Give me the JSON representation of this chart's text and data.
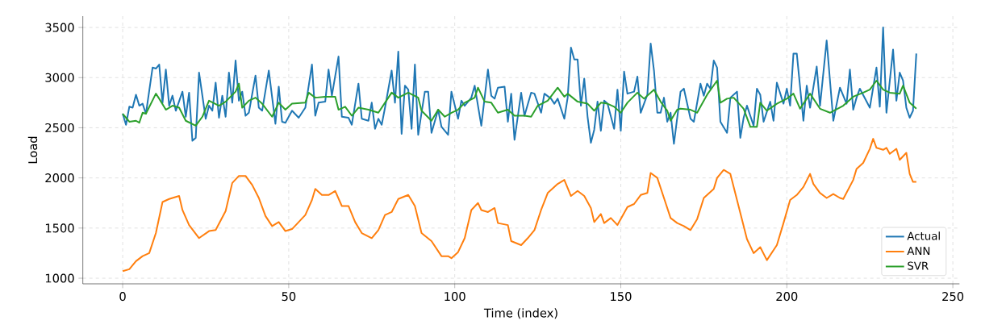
{
  "chart_data": {
    "type": "line",
    "xlabel": "Time (index)",
    "ylabel": "Load",
    "xlim": [
      -12,
      252
    ],
    "ylim": [
      944,
      3613
    ],
    "xticks": [
      0,
      50,
      100,
      150,
      200,
      250
    ],
    "yticks": [
      1000,
      1500,
      2000,
      2500,
      3000,
      3500
    ],
    "grid": true,
    "legend": "bottom right",
    "marker": "none",
    "line_style": "solid",
    "series": [
      {
        "name": "Actual",
        "color": "#1f77b4",
        "x": [
          0,
          1,
          2,
          3,
          4,
          5,
          6,
          7,
          9,
          10,
          11,
          12,
          13,
          14,
          15,
          16,
          18,
          19,
          20,
          21,
          22,
          23,
          25,
          26,
          27,
          28,
          29,
          30,
          31,
          32,
          33,
          34,
          35,
          36,
          37,
          38,
          40,
          41,
          42,
          44,
          46,
          47,
          48,
          49,
          51,
          53,
          55,
          57,
          58,
          59,
          61,
          62,
          63,
          65,
          66,
          68,
          69,
          71,
          72,
          74,
          75,
          76,
          77,
          78,
          79,
          81,
          82,
          83,
          84,
          85,
          86,
          87,
          88,
          89,
          90,
          91,
          92,
          93,
          95,
          96,
          98,
          99,
          101,
          102,
          103,
          105,
          106,
          107,
          108,
          110,
          111,
          112,
          113,
          115,
          116,
          117,
          118,
          120,
          121,
          123,
          124,
          126,
          127,
          129,
          130,
          131,
          133,
          134,
          135,
          136,
          137,
          138,
          139,
          140,
          141,
          142,
          143,
          144,
          145,
          146,
          148,
          149,
          150,
          151,
          152,
          154,
          155,
          156,
          158,
          159,
          160,
          161,
          162,
          163,
          164,
          165,
          166,
          168,
          169,
          171,
          172,
          174,
          175,
          176,
          177,
          178,
          179,
          180,
          182,
          183,
          185,
          186,
          187,
          188,
          190,
          191,
          192,
          193,
          195,
          196,
          197,
          199,
          200,
          201,
          202,
          203,
          205,
          206,
          207,
          209,
          210,
          212,
          214,
          216,
          218,
          219,
          220,
          221,
          222,
          225,
          227,
          228,
          229,
          230,
          232,
          233,
          234,
          235,
          236,
          237,
          238,
          239
        ],
        "values": [
          2640,
          2530,
          2710,
          2700,
          2830,
          2720,
          2740,
          2640,
          3100,
          3090,
          3130,
          2750,
          3080,
          2720,
          2820,
          2670,
          2860,
          2610,
          2850,
          2370,
          2400,
          3050,
          2590,
          2720,
          2670,
          2950,
          2600,
          2820,
          2610,
          3050,
          2750,
          3170,
          2770,
          2860,
          2620,
          2650,
          3020,
          2700,
          2670,
          3070,
          2540,
          2910,
          2560,
          2550,
          2670,
          2600,
          2700,
          3130,
          2620,
          2750,
          2760,
          3080,
          2820,
          3210,
          2610,
          2600,
          2530,
          2940,
          2590,
          2570,
          2750,
          2490,
          2590,
          2530,
          2700,
          3070,
          2750,
          3260,
          2440,
          2920,
          2880,
          2490,
          3130,
          2430,
          2650,
          2860,
          2860,
          2450,
          2680,
          2510,
          2430,
          2860,
          2590,
          2770,
          2720,
          2800,
          2920,
          2720,
          2520,
          3080,
          2820,
          2790,
          2900,
          2910,
          2560,
          2840,
          2380,
          2850,
          2620,
          2850,
          2840,
          2650,
          2840,
          2790,
          2740,
          2790,
          2590,
          2800,
          3300,
          3180,
          3180,
          2720,
          2990,
          2610,
          2350,
          2480,
          2760,
          2470,
          2770,
          2740,
          2490,
          2880,
          2470,
          3060,
          2840,
          2860,
          3010,
          2650,
          2830,
          3340,
          3070,
          2650,
          2650,
          2800,
          2560,
          2650,
          2340,
          2860,
          2890,
          2590,
          2560,
          2940,
          2820,
          2940,
          2890,
          3170,
          3100,
          2560,
          2450,
          2800,
          2860,
          2400,
          2600,
          2720,
          2520,
          2890,
          2830,
          2560,
          2760,
          2570,
          2950,
          2740,
          2890,
          2720,
          3240,
          3240,
          2570,
          2920,
          2700,
          3110,
          2720,
          3370,
          2570,
          2900,
          2740,
          3080,
          2680,
          2800,
          2890,
          2700,
          3100,
          2710,
          3500,
          2650,
          3280,
          2770,
          3050,
          2970,
          2700,
          2600,
          2670,
          3240
        ]
      },
      {
        "name": "ANN",
        "color": "#ff7f0e",
        "x": [
          0,
          2,
          4,
          6,
          8,
          10,
          12,
          14,
          17,
          18,
          20,
          23,
          26,
          28,
          31,
          33,
          35,
          37,
          39,
          41,
          43,
          45,
          47,
          49,
          51,
          53,
          55,
          57,
          58,
          60,
          62,
          64,
          66,
          68,
          70,
          72,
          75,
          77,
          79,
          81,
          83,
          86,
          88,
          90,
          93,
          96,
          98,
          99,
          101,
          103,
          105,
          107,
          108,
          110,
          112,
          113,
          116,
          117,
          120,
          122,
          124,
          126,
          128,
          131,
          133,
          135,
          137,
          139,
          141,
          142,
          144,
          145,
          147,
          149,
          152,
          154,
          156,
          158,
          159,
          161,
          163,
          165,
          167,
          169,
          171,
          173,
          175,
          178,
          179,
          181,
          183,
          185,
          188,
          190,
          192,
          194,
          197,
          199,
          201,
          203,
          205,
          207,
          208,
          210,
          212,
          214,
          216,
          217,
          220,
          221,
          223,
          225,
          226,
          227,
          229,
          230,
          231,
          233,
          234,
          236,
          237,
          238,
          239
        ],
        "values": [
          1070,
          1090,
          1170,
          1220,
          1250,
          1450,
          1760,
          1790,
          1820,
          1680,
          1530,
          1400,
          1470,
          1480,
          1670,
          1950,
          2020,
          2020,
          1930,
          1800,
          1620,
          1520,
          1560,
          1470,
          1490,
          1560,
          1630,
          1780,
          1890,
          1830,
          1830,
          1870,
          1720,
          1720,
          1560,
          1450,
          1400,
          1480,
          1630,
          1660,
          1790,
          1830,
          1720,
          1450,
          1370,
          1220,
          1220,
          1200,
          1260,
          1400,
          1680,
          1750,
          1680,
          1660,
          1700,
          1550,
          1530,
          1370,
          1330,
          1400,
          1480,
          1680,
          1850,
          1940,
          1980,
          1820,
          1870,
          1820,
          1700,
          1560,
          1640,
          1550,
          1600,
          1530,
          1710,
          1740,
          1830,
          1850,
          2050,
          2000,
          1800,
          1600,
          1550,
          1520,
          1480,
          1590,
          1800,
          1890,
          2000,
          2080,
          2040,
          1780,
          1390,
          1250,
          1310,
          1180,
          1330,
          1550,
          1780,
          1830,
          1910,
          2040,
          1940,
          1850,
          1800,
          1840,
          1800,
          1790,
          1980,
          2090,
          2150,
          2290,
          2390,
          2300,
          2280,
          2300,
          2240,
          2290,
          2180,
          2250,
          2040,
          1960,
          1960
        ]
      },
      {
        "name": "SVR",
        "color": "#2ca02c",
        "x": [
          0,
          1,
          2,
          4,
          5,
          6,
          7,
          10,
          11,
          13,
          15,
          17,
          19,
          22,
          24,
          26,
          29,
          31,
          34,
          35,
          36,
          38,
          40,
          42,
          45,
          47,
          49,
          51,
          55,
          56,
          58,
          61,
          64,
          65,
          67,
          69,
          71,
          74,
          77,
          79,
          81,
          83,
          86,
          89,
          90,
          93,
          95,
          97,
          99,
          101,
          103,
          106,
          107,
          109,
          111,
          113,
          116,
          118,
          121,
          123,
          125,
          128,
          131,
          133,
          134,
          137,
          140,
          142,
          144,
          146,
          148,
          150,
          152,
          155,
          157,
          160,
          162,
          164,
          165,
          167,
          168,
          171,
          173,
          174,
          176,
          179,
          180,
          182,
          184,
          187,
          189,
          191,
          192,
          194,
          197,
          200,
          202,
          204,
          207,
          210,
          213,
          217,
          220,
          223,
          225,
          227,
          229,
          231,
          234,
          235,
          237,
          239
        ],
        "values": [
          2640,
          2600,
          2560,
          2570,
          2550,
          2650,
          2640,
          2840,
          2790,
          2680,
          2720,
          2700,
          2570,
          2520,
          2610,
          2770,
          2720,
          2760,
          2860,
          2940,
          2700,
          2770,
          2800,
          2740,
          2610,
          2750,
          2680,
          2740,
          2750,
          2850,
          2800,
          2810,
          2810,
          2680,
          2710,
          2620,
          2700,
          2680,
          2650,
          2750,
          2850,
          2800,
          2850,
          2800,
          2670,
          2570,
          2680,
          2610,
          2650,
          2680,
          2750,
          2800,
          2900,
          2760,
          2750,
          2650,
          2680,
          2620,
          2620,
          2610,
          2720,
          2770,
          2900,
          2810,
          2840,
          2760,
          2740,
          2670,
          2750,
          2740,
          2710,
          2650,
          2750,
          2850,
          2790,
          2880,
          2760,
          2670,
          2570,
          2680,
          2690,
          2680,
          2650,
          2710,
          2830,
          2970,
          2750,
          2790,
          2800,
          2690,
          2510,
          2510,
          2750,
          2670,
          2740,
          2790,
          2840,
          2690,
          2840,
          2690,
          2650,
          2720,
          2810,
          2850,
          2880,
          2970,
          2880,
          2850,
          2840,
          2920,
          2750,
          2690
        ]
      }
    ]
  }
}
